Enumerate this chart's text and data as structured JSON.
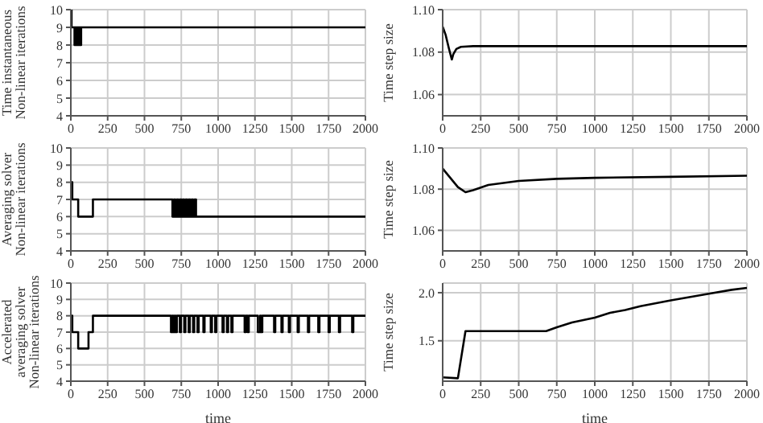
{
  "chart_data": [
    {
      "type": "step",
      "ylabel": "Time instantaneous\nNon-linear iterations",
      "xlim": [
        0,
        2000
      ],
      "xticks": [
        0,
        250,
        500,
        750,
        1000,
        1250,
        1500,
        1750,
        2000
      ],
      "ylim": [
        4,
        10
      ],
      "yticks": [
        4,
        5,
        6,
        7,
        8,
        9,
        10
      ],
      "grid": true,
      "color": "#000000",
      "x": [
        0,
        5,
        25,
        30,
        35,
        40,
        45,
        50,
        55,
        60,
        65,
        70,
        2000
      ],
      "values": [
        10,
        9,
        8,
        9,
        8,
        9,
        8,
        9,
        8,
        9,
        8,
        9,
        9
      ]
    },
    {
      "type": "line",
      "ylabel": "Time step size",
      "xlim": [
        0,
        2000
      ],
      "xticks": [
        0,
        250,
        500,
        750,
        1000,
        1250,
        1500,
        1750,
        2000
      ],
      "ylim": [
        1.05,
        1.1
      ],
      "yticks": [
        {
          "value": 1.06,
          "label": "1.06"
        },
        {
          "value": 1.08,
          "label": "1.08"
        },
        {
          "value": 1.1,
          "label": "1.10"
        }
      ],
      "grid": true,
      "color": "#000000",
      "x": [
        0,
        20,
        40,
        60,
        70,
        90,
        120,
        200,
        2000
      ],
      "values": [
        1.092,
        1.088,
        1.082,
        1.0765,
        1.079,
        1.0815,
        1.0825,
        1.0828,
        1.0828
      ]
    },
    {
      "type": "step",
      "ylabel": "Averaging solver\nNon-linear iterations",
      "xlim": [
        0,
        2000
      ],
      "xticks": [
        0,
        250,
        500,
        750,
        1000,
        1250,
        1500,
        1750,
        2000
      ],
      "ylim": [
        4,
        10
      ],
      "yticks": [
        4,
        5,
        6,
        7,
        8,
        9,
        10
      ],
      "grid": true,
      "color": "#000000",
      "x": [
        0,
        10,
        50,
        150,
        690,
        700,
        710,
        720,
        730,
        740,
        750,
        760,
        770,
        780,
        790,
        800,
        810,
        820,
        830,
        840,
        850,
        860,
        2000
      ],
      "values": [
        8,
        7,
        6,
        7,
        6,
        7,
        6,
        7,
        6,
        7,
        6,
        7,
        6,
        7,
        6,
        7,
        6,
        7,
        6,
        7,
        6,
        6,
        6
      ]
    },
    {
      "type": "line",
      "ylabel": "Time step size",
      "xlim": [
        0,
        2000
      ],
      "xticks": [
        0,
        250,
        500,
        750,
        1000,
        1250,
        1500,
        1750,
        2000
      ],
      "ylim": [
        1.05,
        1.1
      ],
      "yticks": [
        {
          "value": 1.06,
          "label": "1.06"
        },
        {
          "value": 1.08,
          "label": "1.08"
        },
        {
          "value": 1.1,
          "label": "1.10"
        }
      ],
      "grid": true,
      "color": "#000000",
      "x": [
        0,
        50,
        100,
        150,
        200,
        300,
        500,
        750,
        1000,
        1500,
        2000
      ],
      "values": [
        1.09,
        1.0855,
        1.081,
        1.0785,
        1.0795,
        1.082,
        1.084,
        1.085,
        1.0855,
        1.086,
        1.0865
      ]
    },
    {
      "type": "step",
      "ylabel": "Accelerated\naveraging solver\nNon-linear iterations",
      "xlabel": "time",
      "xlim": [
        0,
        2000
      ],
      "xticks": [
        0,
        250,
        500,
        750,
        1000,
        1250,
        1500,
        1750,
        2000
      ],
      "ylim": [
        4,
        10
      ],
      "yticks": [
        4,
        5,
        6,
        7,
        8,
        9,
        10
      ],
      "grid": true,
      "color": "#000000",
      "x": [
        0,
        10,
        50,
        120,
        150,
        680,
        690,
        695,
        705,
        710,
        720,
        740,
        748,
        770,
        778,
        800,
        808,
        830,
        838,
        860,
        868,
        900,
        908,
        950,
        958,
        980,
        988,
        1030,
        1038,
        1060,
        1068,
        1090,
        1098,
        1180,
        1188,
        1200,
        1208,
        1270,
        1285,
        1290,
        1300,
        1380,
        1388,
        1430,
        1438,
        1480,
        1488,
        1540,
        1548,
        1610,
        1618,
        1680,
        1688,
        1750,
        1758,
        1820,
        1828,
        1910,
        1918,
        2000
      ],
      "values": [
        8,
        7,
        6,
        7,
        8,
        7,
        8,
        7,
        8,
        7,
        8,
        7,
        8,
        7,
        8,
        7,
        8,
        7,
        8,
        7,
        8,
        7,
        8,
        7,
        8,
        7,
        8,
        7,
        8,
        7,
        8,
        7,
        8,
        7,
        8,
        7,
        8,
        7,
        8,
        7,
        8,
        7,
        8,
        7,
        8,
        7,
        8,
        7,
        8,
        7,
        8,
        7,
        8,
        7,
        8,
        7,
        8,
        7,
        8,
        8
      ]
    },
    {
      "type": "line",
      "ylabel": "Time step size",
      "xlabel": "time",
      "xlim": [
        0,
        2000
      ],
      "xticks": [
        0,
        250,
        500,
        750,
        1000,
        1250,
        1500,
        1750,
        2000
      ],
      "ylim": [
        1.08,
        2.1
      ],
      "yticks": [
        1.5,
        {
          "value": 2,
          "label": "2.0"
        }
      ],
      "grid": true,
      "color": "#000000",
      "x": [
        0,
        100,
        150,
        680,
        750,
        850,
        1000,
        1100,
        1200,
        1300,
        1500,
        1750,
        1900,
        2000
      ],
      "values": [
        1.12,
        1.11,
        1.6,
        1.6,
        1.64,
        1.69,
        1.74,
        1.79,
        1.82,
        1.86,
        1.92,
        1.99,
        2.03,
        2.05
      ]
    }
  ]
}
